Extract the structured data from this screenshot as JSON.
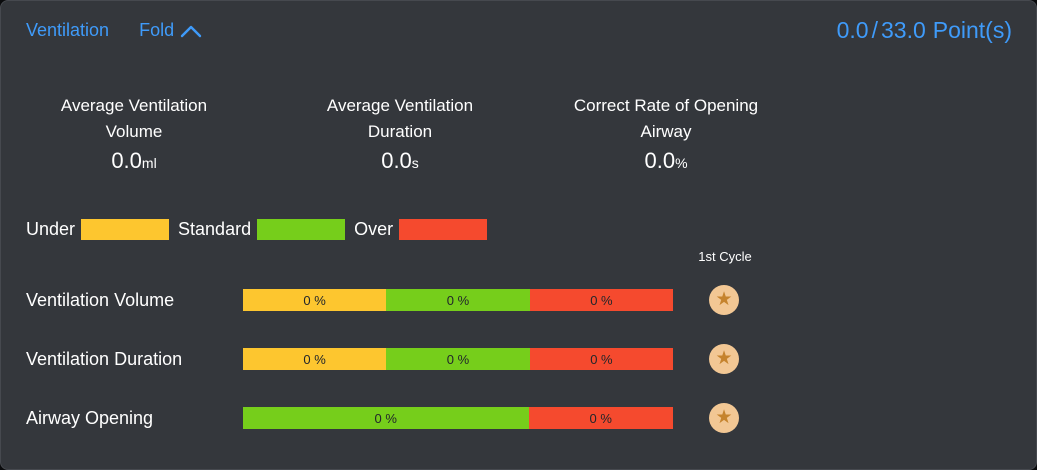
{
  "header": {
    "title": "Ventilation",
    "fold_label": "Fold",
    "points": {
      "current": "0.0",
      "separator": "/",
      "total": "33.0",
      "unit": "Point(s)"
    }
  },
  "stats": [
    {
      "label_line1": "Average Ventilation",
      "label_line2": "Volume",
      "value": "0.0",
      "unit": "ml"
    },
    {
      "label_line1": "Average Ventilation",
      "label_line2": "Duration",
      "value": "0.0",
      "unit": "s"
    },
    {
      "label_line1": "Correct Rate of Opening",
      "label_line2": "Airway",
      "value": "0.0",
      "unit": "%"
    }
  ],
  "colors": {
    "under": "#fdc62f",
    "standard": "#76ce1b",
    "over": "#f54a2e",
    "accent_blue": "#3f9bfa",
    "star_badge_bg": "#f2c794",
    "star_icon": "#c5832d"
  },
  "legend": {
    "items": [
      {
        "label": "Under",
        "category": "under"
      },
      {
        "label": "Standard",
        "category": "standard"
      },
      {
        "label": "Over",
        "category": "over"
      }
    ]
  },
  "cycle_header": "1st Cycle",
  "rows": [
    {
      "label": "Ventilation Volume",
      "segments": [
        {
          "category": "under",
          "value": "0 %",
          "width_pct": 33.3
        },
        {
          "category": "standard",
          "value": "0 %",
          "width_pct": 33.4
        },
        {
          "category": "over",
          "value": "0 %",
          "width_pct": 33.3
        }
      ]
    },
    {
      "label": "Ventilation Duration",
      "segments": [
        {
          "category": "under",
          "value": "0 %",
          "width_pct": 33.3
        },
        {
          "category": "standard",
          "value": "0 %",
          "width_pct": 33.4
        },
        {
          "category": "over",
          "value": "0 %",
          "width_pct": 33.3
        }
      ]
    },
    {
      "label": "Airway Opening",
      "segments": [
        {
          "category": "standard",
          "value": "0 %",
          "width_pct": 66.4
        },
        {
          "category": "over",
          "value": "0 %",
          "width_pct": 33.6
        }
      ]
    }
  ],
  "chart_data": {
    "type": "bar",
    "subtype": "horizontal-stacked",
    "categories": [
      "Ventilation Volume",
      "Ventilation Duration",
      "Airway Opening"
    ],
    "series": [
      {
        "name": "Under",
        "values": [
          0,
          0,
          null
        ],
        "color": "#fdc62f"
      },
      {
        "name": "Standard",
        "values": [
          0,
          0,
          0
        ],
        "color": "#76ce1b"
      },
      {
        "name": "Over",
        "values": [
          0,
          0,
          0
        ],
        "color": "#f54a2e"
      }
    ],
    "value_unit": "%",
    "legend_position": "top-left",
    "column_header": "1st Cycle",
    "title": "Ventilation",
    "score": {
      "achieved": 0.0,
      "max": 33.0,
      "unit": "Point(s)"
    }
  }
}
